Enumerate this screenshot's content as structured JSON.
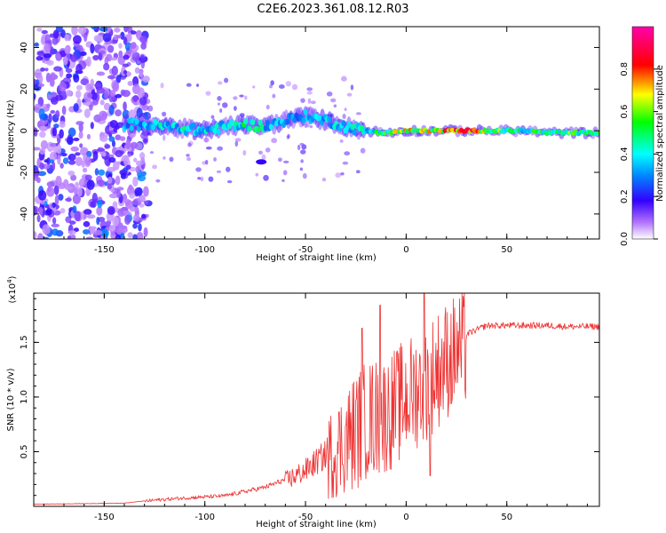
{
  "title": "C2E6.2023.361.08.12.R03",
  "colors": {
    "snr_line": "#ee3333",
    "frame": "#000000",
    "background": "#ffffff"
  },
  "chart_data": [
    {
      "type": "heatmap",
      "name": "spectrogram",
      "xlabel": "Height of straight line (km)",
      "ylabel": "Frequency (Hz)",
      "xlim": [
        -185,
        96
      ],
      "ylim": [
        -52,
        50
      ],
      "xticks": [
        -150,
        -100,
        -50,
        0,
        50
      ],
      "xtick_labels": [
        "-150",
        "-100",
        "-50",
        "0",
        "50"
      ],
      "yticks": [
        -40,
        -20,
        0,
        20,
        40
      ],
      "ytick_labels": [
        "-40",
        "-20",
        "0",
        "20",
        "40"
      ],
      "colorbar": {
        "label": "Normalized spectral amplitude",
        "range": [
          0,
          1
        ],
        "ticks": [
          0,
          0.2,
          0.4,
          0.6,
          0.8
        ],
        "tick_labels": [
          "0.0",
          "0.2",
          "0.4",
          "0.6",
          "0.8"
        ]
      },
      "ridge": {
        "x": [
          -140,
          -130,
          -120,
          -110,
          -100,
          -90,
          -80,
          -70,
          -60,
          -50,
          -40,
          -30,
          -20,
          -10,
          0,
          10,
          20,
          30,
          40,
          50,
          60,
          70,
          80,
          96
        ],
        "center_hz": [
          3,
          3,
          2,
          1,
          0,
          2,
          3,
          2,
          5,
          7,
          5,
          2,
          0,
          -1,
          0,
          0,
          0,
          0,
          0,
          0,
          0,
          -1,
          -1,
          -1
        ],
        "amplitude": [
          0.35,
          0.4,
          0.45,
          0.45,
          0.4,
          0.45,
          0.5,
          0.45,
          0.35,
          0.4,
          0.4,
          0.4,
          0.45,
          0.6,
          0.75,
          0.7,
          0.8,
          0.9,
          0.7,
          0.55,
          0.5,
          0.55,
          0.6,
          0.55
        ]
      },
      "noise_region_xmax": -128
    },
    {
      "type": "line",
      "name": "snr",
      "xlabel": "Height of straight line (km)",
      "ylabel": "SNR (10 * v/v)",
      "y_multiplier": "(x10^4)",
      "y_multiplier_base": "(x10",
      "y_multiplier_exp": "4",
      "y_multiplier_close": ")",
      "xlim": [
        -185,
        96
      ],
      "ylim": [
        0,
        1.95
      ],
      "xticks": [
        -150,
        -100,
        -50,
        0,
        50
      ],
      "xtick_labels": [
        "-150",
        "-100",
        "-50",
        "0",
        "50"
      ],
      "yticks": [
        0.5,
        1.0,
        1.5
      ],
      "ytick_labels": [
        "0.5",
        "1.0",
        "1.5"
      ],
      "series": [
        {
          "name": "SNR",
          "envelope_x": [
            -185,
            -140,
            -125,
            -110,
            -90,
            -70,
            -60,
            -50,
            -40,
            -30,
            -20,
            -10,
            0,
            10,
            20,
            30,
            40,
            50,
            60,
            70,
            80,
            96
          ],
          "envelope_y": [
            0.02,
            0.03,
            0.06,
            0.08,
            0.1,
            0.18,
            0.25,
            0.35,
            0.5,
            0.7,
            0.9,
            0.95,
            1.1,
            1.25,
            1.45,
            1.58,
            1.66,
            1.66,
            1.66,
            1.66,
            1.65,
            1.65
          ],
          "spikes": [
            {
              "x": -22,
              "y": 1.63
            },
            {
              "x": -13,
              "y": 1.84
            },
            {
              "x": 9,
              "y": 1.95
            },
            {
              "x": 12,
              "y": 0.28
            }
          ]
        }
      ]
    }
  ]
}
